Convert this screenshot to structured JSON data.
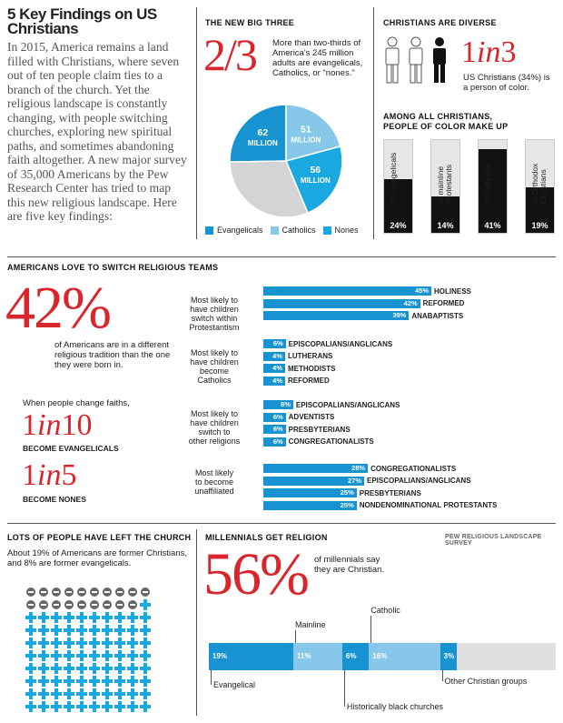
{
  "intro": {
    "title": "5 Key Findings on US Christians",
    "body": "In 2015, America remains a land filled with Christians, where seven out of ten people claim ties to a branch of the church. Yet the religious landscape is constantly changing, with people switching churches, exploring new spiritual paths, and sometimes abandoning faith altogether. A new major survey of 35,000 Americans by the Pew Research Center has tried to map this new religious landscape. Here are five key findings:"
  },
  "big_three": {
    "heading": "THE NEW BIG THREE",
    "fraction": "2/3",
    "text": "More than two-thirds of America's 245 million adults are evangelicals, Catholics, or \"nones.\"",
    "legend": [
      "Evangelicals",
      "Catholics",
      "Nones"
    ]
  },
  "diverse": {
    "heading": "CHRISTIANS ARE DIVERSE",
    "stat_a": "1",
    "stat_in": "in",
    "stat_b": "3",
    "text": "US Christians (34%) is a person of color.",
    "sub_heading": "AMONG ALL CHRISTIANS, PEOPLE OF COLOR MAKE UP"
  },
  "switch": {
    "heading": "AMERICANS LOVE TO SWITCH RELIGIOUS TEAMS",
    "big": "42%",
    "big_text": "of Americans are in a different religious tradition than the one they were born in.",
    "change_text": "When people change faiths,",
    "s1_a": "1",
    "s1_in": "in",
    "s1_b": "10",
    "s1_label": "BECOME EVANGELICALS",
    "s2_a": "1",
    "s2_in": "in",
    "s2_b": "5",
    "s2_label": "BECOME NONES"
  },
  "left_church": {
    "heading": "LOTS OF PEOPLE HAVE LEFT THE CHURCH",
    "text": "About 19% of Americans are former Christians, and 8% are former evangelicals."
  },
  "millennials": {
    "heading": "MILLENNIALS GET RELIGION",
    "source": "PEW RELIGIOUS LANDSCAPE SURVEY",
    "big": "56%",
    "text": "of millennials say they are Christian."
  },
  "colors": {
    "evangelical": "#1793d1",
    "catholic": "#87c8ea",
    "nones": "#1aa8e0",
    "other": "#d4d4d4",
    "red": "#d9262c"
  },
  "chart_data": [
    {
      "type": "pie",
      "title": "THE NEW BIG THREE",
      "categories": [
        "Evangelicals",
        "Catholics",
        "Nones",
        "Other"
      ],
      "values": [
        62,
        51,
        56,
        76
      ],
      "labels": [
        "62 MILLION",
        "51 MILLION",
        "56 MILLION",
        ""
      ]
    },
    {
      "type": "bar",
      "title": "AMONG ALL CHRISTIANS, PEOPLE OF COLOR MAKE UP",
      "categories": [
        "of evangelicals",
        "of mainline Protestants",
        "of Catholics",
        "of Orthodox Christians"
      ],
      "values": [
        24,
        14,
        41,
        19
      ],
      "labels": [
        "24%",
        "14%",
        "41%",
        "19%"
      ]
    },
    {
      "type": "bar",
      "title": "AMERICANS LOVE TO SWITCH RELIGIOUS TEAMS",
      "groups": [
        {
          "label": "Most likely to have children switch within Protestantism",
          "bars": [
            {
              "name": "HOLINESS",
              "value": 45,
              "label": "45%"
            },
            {
              "name": "REFORMED",
              "value": 42,
              "label": "42%"
            },
            {
              "name": "ANABAPTISTS",
              "value": 39,
              "label": "39%"
            }
          ]
        },
        {
          "label": "Most likely to have children become Catholics",
          "bars": [
            {
              "name": "EPISCOPALIANS/ANGLICANS",
              "value": 6,
              "label": "6%"
            },
            {
              "name": "LUTHERANS",
              "value": 4,
              "label": "4%"
            },
            {
              "name": "METHODISTS",
              "value": 4,
              "label": "4%"
            },
            {
              "name": "REFORMED",
              "value": 4,
              "label": "4%"
            }
          ]
        },
        {
          "label": "Most likely to have children switch to other religions",
          "bars": [
            {
              "name": "EPISCOPALIANS/ANGLICANS",
              "value": 8,
              "label": "8%"
            },
            {
              "name": "ADVENTISTS",
              "value": 6,
              "label": "6%"
            },
            {
              "name": "PRESBYTERIANS",
              "value": 6,
              "label": "6%"
            },
            {
              "name": "CONGREGATIONALISTS",
              "value": 6,
              "label": "6%"
            }
          ]
        },
        {
          "label": "Most likely to become unaffiliated",
          "bars": [
            {
              "name": "CONGREGATIONALISTS",
              "value": 28,
              "label": "28%"
            },
            {
              "name": "EPISCOPALIANS/ANGLICANS",
              "value": 27,
              "label": "27%"
            },
            {
              "name": "PRESBYTERIANS",
              "value": 25,
              "label": "25%"
            },
            {
              "name": "NONDENOMINATIONAL PROTESTANTS",
              "value": 25,
              "label": "25%"
            }
          ]
        }
      ]
    },
    {
      "type": "bar",
      "title": "MILLENNIALS GET RELIGION",
      "categories": [
        "Evangelical",
        "Mainline",
        "Historically black churches",
        "Catholic",
        "Other Christian groups"
      ],
      "values": [
        19,
        11,
        6,
        16,
        3
      ],
      "labels": [
        "19%",
        "11%",
        "6%",
        "16%",
        "3%"
      ],
      "total": 100
    }
  ],
  "icons": {
    "minus_count": 19,
    "plus_count": 81
  }
}
